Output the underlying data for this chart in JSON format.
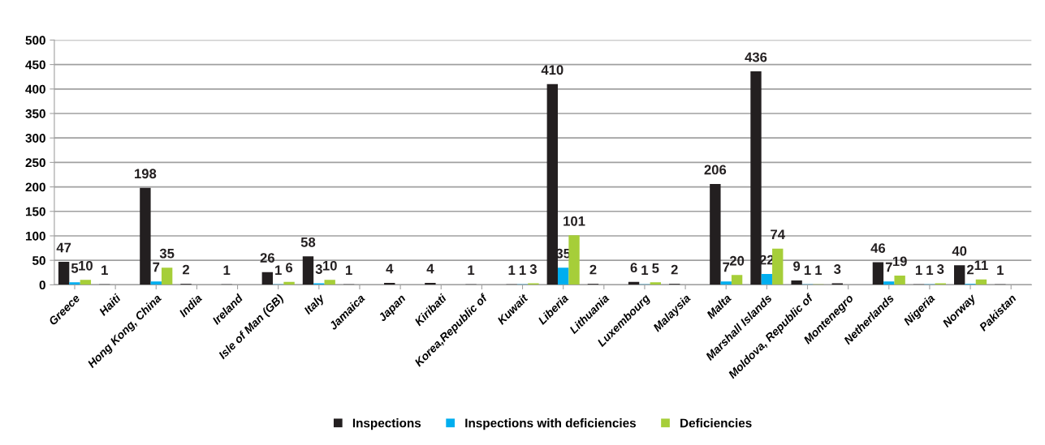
{
  "chart_data": {
    "type": "bar",
    "categories": [
      "Greece",
      "Haiti",
      "Hong Kong, China",
      "India",
      "Ireland",
      "Isle of Man (GB)",
      "Italy",
      "Jamaica",
      "Japan",
      "Kiribati",
      "Korea,Republic of",
      "Kuwait",
      "Liberia",
      "Lithuania",
      "Luxembourg",
      "Malaysia",
      "Malta",
      "Marshall Islands",
      "Moldova, Republic of",
      "Montenegro",
      "Netherlands",
      "Nigeria",
      "Norway",
      "Pakistan"
    ],
    "series": [
      {
        "name": "Inspections",
        "color": "#231f20",
        "values": [
          47,
          1,
          198,
          2,
          1,
          26,
          58,
          1,
          4,
          4,
          1,
          1,
          410,
          2,
          6,
          2,
          206,
          436,
          9,
          3,
          46,
          1,
          40,
          1
        ]
      },
      {
        "name": "Inspections with deficiencies",
        "color": "#00aeef",
        "values": [
          5,
          null,
          7,
          null,
          null,
          1,
          3,
          null,
          null,
          null,
          null,
          1,
          35,
          null,
          1,
          null,
          7,
          22,
          1,
          null,
          7,
          1,
          2,
          null
        ]
      },
      {
        "name": "Deficiencies",
        "color": "#a6ce39",
        "values": [
          10,
          null,
          35,
          null,
          null,
          6,
          10,
          null,
          null,
          null,
          null,
          3,
          101,
          null,
          5,
          null,
          20,
          74,
          1,
          null,
          19,
          3,
          11,
          null
        ]
      }
    ],
    "ylim": [
      0,
      500
    ],
    "yticks": [
      0,
      50,
      100,
      150,
      200,
      250,
      300,
      350,
      400,
      450,
      500
    ],
    "grid": "y",
    "legend": "bottom",
    "data_labels": true
  }
}
